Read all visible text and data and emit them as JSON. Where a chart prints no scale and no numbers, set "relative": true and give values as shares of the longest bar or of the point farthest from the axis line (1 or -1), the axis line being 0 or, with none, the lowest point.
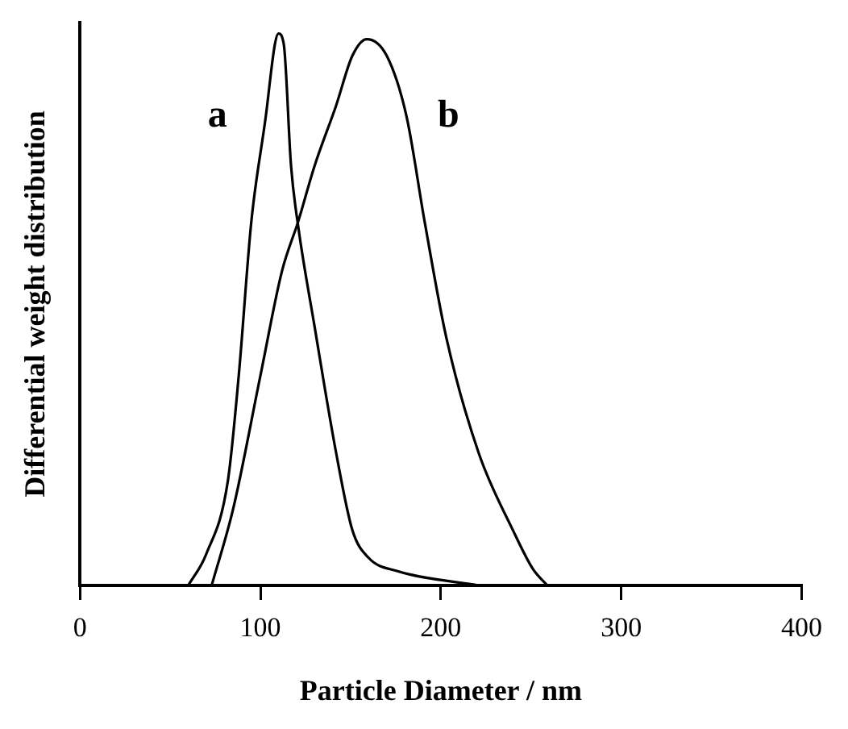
{
  "chart_data": {
    "type": "line",
    "xlabel": "Particle Diameter / nm",
    "ylabel": "Differential weight distribution",
    "relative": true,
    "xlim": [
      0,
      400
    ],
    "xticks": [
      0,
      100,
      200,
      300,
      400
    ],
    "grid": false,
    "legend": false,
    "marker": "none",
    "line_style": "solid",
    "series": [
      {
        "type": "line",
        "name": "a",
        "color": "#000000",
        "x": [
          60,
          70,
          82,
          88,
          95,
          103,
          108,
          110,
          113,
          117,
          121,
          130,
          142,
          151,
          160,
          176,
          221
        ],
        "values": [
          0,
          0.057,
          0.19,
          0.38,
          0.66,
          0.85,
          0.98,
          1,
          0.98,
          0.76,
          0.65,
          0.47,
          0.24,
          0.1,
          0.05,
          0.026,
          0
        ]
      },
      {
        "type": "line",
        "name": "b",
        "color": "#000000",
        "x": [
          73,
          85,
          100,
          112,
          121,
          130,
          142,
          151,
          159,
          170,
          181,
          191,
          203,
          221,
          240,
          251,
          259
        ],
        "values": [
          0,
          0.14,
          0.38,
          0.57,
          0.66,
          0.76,
          0.87,
          0.96,
          0.99,
          0.96,
          0.85,
          0.66,
          0.45,
          0.24,
          0.1,
          0.03,
          0
        ]
      }
    ]
  }
}
